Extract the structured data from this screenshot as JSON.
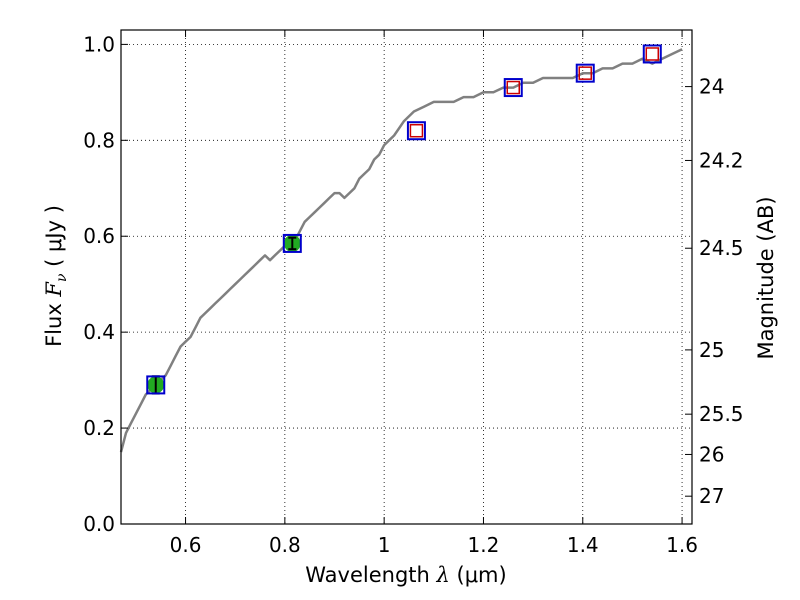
{
  "chart_data": {
    "type": "line",
    "xlabel": {
      "prefix": "Wavelength  ",
      "symbol": "λ",
      "unit": " (μm)"
    },
    "ylabel": {
      "prefix": "Flux  ",
      "symbol": "F",
      "sub": "ν",
      "unit": "  ( μJy )"
    },
    "ylabel_right": "Magnitude (AB)",
    "xlim": [
      0.47,
      1.62
    ],
    "ylim": [
      0.0,
      1.03
    ],
    "grid": true,
    "x_ticks": [
      0.6,
      0.8,
      1.0,
      1.2,
      1.4,
      1.6
    ],
    "x_tick_labels": [
      "0.6",
      "0.8",
      "1",
      "1.2",
      "1.4",
      "1.6"
    ],
    "y_ticks": [
      0.0,
      0.2,
      0.4,
      0.6,
      0.8,
      1.0
    ],
    "y_tick_labels": [
      "0.0",
      "0.2",
      "0.4",
      "0.6",
      "0.8",
      "1.0"
    ],
    "right_ticks": [
      {
        "label": "24",
        "flux": 0.912
      },
      {
        "label": "24.2",
        "flux": 0.758
      },
      {
        "label": "24.5",
        "flux": 0.575
      },
      {
        "label": "25",
        "flux": 0.363
      },
      {
        "label": "25.5",
        "flux": 0.229
      },
      {
        "label": "26",
        "flux": 0.145
      },
      {
        "label": "27",
        "flux": 0.058
      }
    ],
    "series": [
      {
        "name": "model-spectrum",
        "color": "#808080",
        "x": [
          0.47,
          0.48,
          0.49,
          0.5,
          0.51,
          0.52,
          0.53,
          0.54,
          0.55,
          0.56,
          0.57,
          0.58,
          0.59,
          0.6,
          0.61,
          0.62,
          0.63,
          0.64,
          0.65,
          0.66,
          0.67,
          0.68,
          0.69,
          0.7,
          0.71,
          0.72,
          0.73,
          0.74,
          0.75,
          0.76,
          0.77,
          0.78,
          0.79,
          0.8,
          0.81,
          0.82,
          0.83,
          0.84,
          0.85,
          0.86,
          0.87,
          0.88,
          0.89,
          0.9,
          0.91,
          0.92,
          0.93,
          0.94,
          0.95,
          0.96,
          0.97,
          0.98,
          0.99,
          1.0,
          1.01,
          1.02,
          1.04,
          1.06,
          1.08,
          1.1,
          1.12,
          1.14,
          1.16,
          1.18,
          1.2,
          1.22,
          1.24,
          1.26,
          1.28,
          1.3,
          1.32,
          1.34,
          1.36,
          1.38,
          1.4,
          1.42,
          1.44,
          1.46,
          1.48,
          1.5,
          1.52,
          1.54,
          1.56,
          1.58,
          1.6
        ],
        "y": [
          0.15,
          0.19,
          0.21,
          0.23,
          0.25,
          0.27,
          0.28,
          0.29,
          0.3,
          0.31,
          0.33,
          0.35,
          0.37,
          0.38,
          0.39,
          0.41,
          0.43,
          0.44,
          0.45,
          0.46,
          0.47,
          0.48,
          0.49,
          0.5,
          0.51,
          0.52,
          0.53,
          0.54,
          0.55,
          0.56,
          0.55,
          0.56,
          0.57,
          0.58,
          0.58,
          0.59,
          0.61,
          0.63,
          0.64,
          0.65,
          0.66,
          0.67,
          0.68,
          0.69,
          0.69,
          0.68,
          0.69,
          0.7,
          0.72,
          0.73,
          0.74,
          0.76,
          0.77,
          0.79,
          0.8,
          0.81,
          0.84,
          0.86,
          0.87,
          0.88,
          0.88,
          0.88,
          0.89,
          0.89,
          0.9,
          0.9,
          0.91,
          0.91,
          0.92,
          0.92,
          0.93,
          0.93,
          0.93,
          0.93,
          0.94,
          0.94,
          0.95,
          0.95,
          0.96,
          0.96,
          0.97,
          0.96,
          0.97,
          0.98,
          0.99
        ]
      }
    ],
    "model_points": {
      "name": "model-photometry",
      "color": "#cc0000",
      "x": [
        1.065,
        1.26,
        1.405,
        1.54
      ],
      "y": [
        0.82,
        0.91,
        0.94,
        0.98
      ]
    },
    "bandpass_boxes": {
      "name": "filter-bands",
      "color": "#0000cc",
      "x": [
        0.54,
        0.815,
        1.065,
        1.26,
        1.405,
        1.54
      ],
      "y": [
        0.29,
        0.585,
        0.82,
        0.91,
        0.94,
        0.98
      ]
    },
    "observed_points": {
      "name": "observed-photometry",
      "color": "#22aa22",
      "x": [
        0.54,
        0.815
      ],
      "y": [
        0.29,
        0.585
      ],
      "yerr": [
        0.018,
        0.012
      ]
    }
  }
}
